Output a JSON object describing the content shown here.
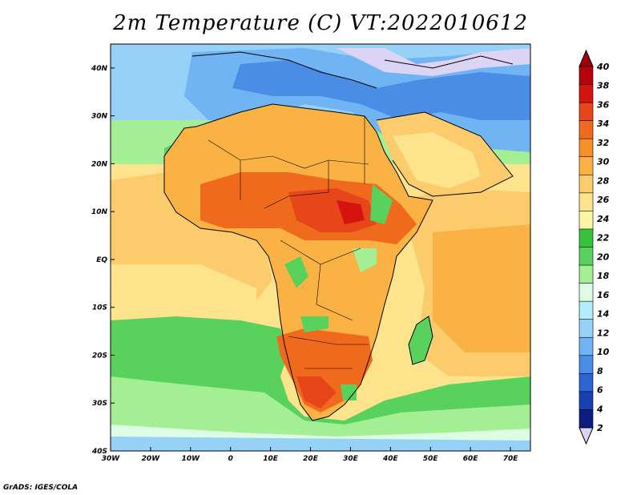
{
  "title": "2m Temperature (C) VT:2022010612",
  "footer": "GrADS: IGES/COLA",
  "map": {
    "lon_range": [
      -30,
      75
    ],
    "lat_range": [
      -40,
      45
    ],
    "lon_ticks": [
      {
        "value": -30,
        "label": "30W"
      },
      {
        "value": -20,
        "label": "20W"
      },
      {
        "value": -10,
        "label": "10W"
      },
      {
        "value": 0,
        "label": "0"
      },
      {
        "value": 10,
        "label": "10E"
      },
      {
        "value": 20,
        "label": "20E"
      },
      {
        "value": 30,
        "label": "30E"
      },
      {
        "value": 40,
        "label": "40E"
      },
      {
        "value": 50,
        "label": "50E"
      },
      {
        "value": 60,
        "label": "60E"
      },
      {
        "value": 70,
        "label": "70E"
      }
    ],
    "lat_ticks": [
      {
        "value": 40,
        "label": "40N"
      },
      {
        "value": 30,
        "label": "30N"
      },
      {
        "value": 20,
        "label": "20N"
      },
      {
        "value": 10,
        "label": "10N"
      },
      {
        "value": 0,
        "label": "EQ"
      },
      {
        "value": -10,
        "label": "10S"
      },
      {
        "value": -20,
        "label": "20S"
      },
      {
        "value": -30,
        "label": "30S"
      },
      {
        "value": -40,
        "label": "40S"
      }
    ]
  },
  "colorbar": {
    "labels": [
      "40",
      "38",
      "36",
      "34",
      "32",
      "30",
      "28",
      "26",
      "24",
      "22",
      "20",
      "18",
      "16",
      "14",
      "12",
      "10",
      "8",
      "6",
      "4",
      "2"
    ],
    "top_color": "#a0000a",
    "bottom_color": "#dcd4f4",
    "colors": [
      "#b5030c",
      "#d51410",
      "#e7451a",
      "#f06a1e",
      "#f69128",
      "#fab244",
      "#fccc6c",
      "#fde48c",
      "#fff5a8",
      "#36c23c",
      "#58d25c",
      "#a4ee94",
      "#dcfce4",
      "#b4ecfc",
      "#96d2f8",
      "#70b4f4",
      "#4a8de6",
      "#2c64d4",
      "#1840b0",
      "#0c1c80"
    ]
  }
}
